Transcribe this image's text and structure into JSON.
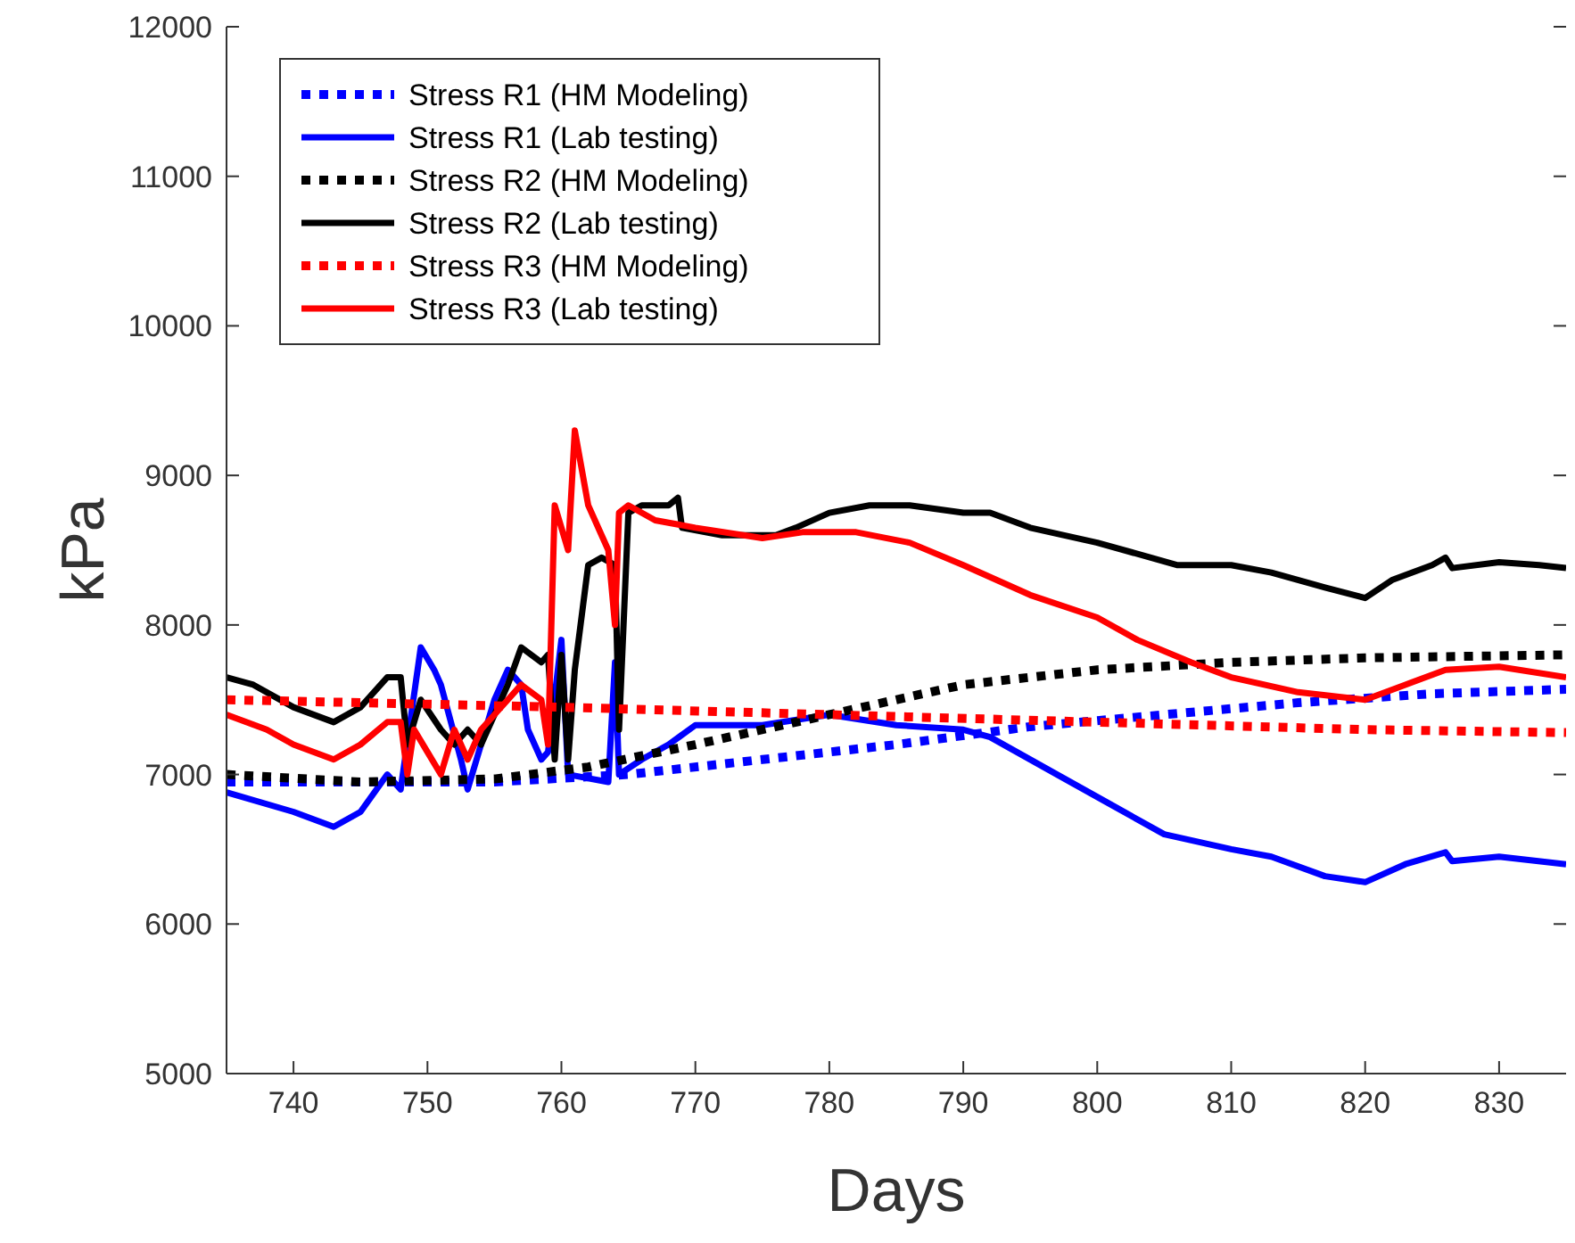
{
  "chart_data": {
    "type": "line",
    "xlabel": "Days",
    "ylabel": "kPa",
    "xlim": [
      735,
      835
    ],
    "ylim": [
      5000,
      12000
    ],
    "xticks": [
      740,
      750,
      760,
      770,
      780,
      790,
      800,
      810,
      820,
      830
    ],
    "yticks": [
      5000,
      6000,
      7000,
      8000,
      9000,
      10000,
      11000,
      12000
    ],
    "legend": "top left",
    "grid": false,
    "series": [
      {
        "name": "Stress R1 (HM Modeling)",
        "color": "#0000ff",
        "line_style": "dotted",
        "x": [
          735,
          745,
          755,
          765,
          775,
          785,
          795,
          805,
          815,
          825,
          835
        ],
        "values": [
          6950,
          6950,
          6950,
          7000,
          7100,
          7200,
          7320,
          7400,
          7480,
          7540,
          7570
        ]
      },
      {
        "name": "Stress R1 (Lab testing)",
        "color": "#0000ff",
        "line_style": "solid",
        "x": [
          735,
          740,
          743,
          745,
          747,
          748,
          749.5,
          750.5,
          751,
          752.5,
          753,
          754,
          755,
          756,
          757,
          757.5,
          758.5,
          759,
          760,
          760.5,
          763.5,
          764,
          764.3,
          766,
          768,
          770,
          775,
          780,
          785,
          790,
          792,
          797,
          801,
          805,
          810,
          813,
          817,
          820,
          823,
          826,
          826.5,
          830,
          835
        ],
        "values": [
          6880,
          6750,
          6650,
          6750,
          7000,
          6900,
          7850,
          7700,
          7600,
          7100,
          6900,
          7200,
          7500,
          7700,
          7600,
          7300,
          7100,
          7150,
          7900,
          7000,
          6950,
          7750,
          7000,
          7100,
          7200,
          7330,
          7330,
          7400,
          7330,
          7300,
          7250,
          7000,
          6800,
          6600,
          6500,
          6450,
          6320,
          6280,
          6400,
          6480,
          6420,
          6450,
          6400
        ]
      },
      {
        "name": "Stress R2 (HM Modeling)",
        "color": "#000000",
        "line_style": "dotted",
        "x": [
          735,
          745,
          755,
          762,
          770,
          780,
          790,
          800,
          810,
          820,
          835
        ],
        "values": [
          7000,
          6950,
          6970,
          7050,
          7200,
          7400,
          7600,
          7700,
          7750,
          7780,
          7800
        ]
      },
      {
        "name": "Stress R2 (Lab testing)",
        "color": "#000000",
        "line_style": "solid",
        "x": [
          735,
          737,
          740,
          743,
          745,
          747,
          748,
          748.5,
          749.5,
          751,
          752,
          753,
          754,
          755,
          756,
          757,
          758.5,
          759,
          759.5,
          760,
          760.5,
          761,
          762,
          763,
          764,
          764.3,
          765,
          766,
          768,
          768.7,
          769,
          772,
          776,
          777.5,
          780,
          783,
          786,
          790,
          792,
          795,
          800,
          804,
          806,
          810,
          813,
          817,
          820,
          822,
          825,
          826,
          826.5,
          830,
          833,
          835
        ],
        "values": [
          7650,
          7600,
          7450,
          7350,
          7450,
          7650,
          7650,
          7200,
          7500,
          7300,
          7200,
          7300,
          7200,
          7400,
          7600,
          7850,
          7750,
          7800,
          7100,
          7800,
          7100,
          7700,
          8400,
          8450,
          8400,
          7300,
          8750,
          8800,
          8800,
          8850,
          8650,
          8600,
          8600,
          8650,
          8750,
          8800,
          8800,
          8750,
          8750,
          8650,
          8550,
          8450,
          8400,
          8400,
          8350,
          8250,
          8180,
          8300,
          8400,
          8450,
          8380,
          8420,
          8400,
          8380
        ]
      },
      {
        "name": "Stress R3 (HM Modeling)",
        "color": "#ff0000",
        "line_style": "dotted",
        "x": [
          735,
          760,
          780,
          800,
          820,
          835
        ],
        "values": [
          7500,
          7450,
          7400,
          7350,
          7300,
          7280
        ]
      },
      {
        "name": "Stress R3 (Lab testing)",
        "color": "#ff0000",
        "line_style": "solid",
        "x": [
          735,
          738,
          740,
          743,
          745,
          747,
          748,
          748.5,
          749,
          750,
          751,
          752,
          753,
          754,
          755,
          756,
          757,
          758.5,
          759,
          759.5,
          760.5,
          761,
          762,
          763,
          763.5,
          764,
          764.3,
          765,
          767,
          770,
          775,
          778,
          782,
          786,
          790,
          795,
          800,
          803,
          807,
          810,
          815,
          820,
          823,
          826,
          830,
          835
        ],
        "values": [
          7400,
          7300,
          7200,
          7100,
          7200,
          7350,
          7350,
          7000,
          7300,
          7150,
          7000,
          7300,
          7100,
          7300,
          7400,
          7500,
          7600,
          7500,
          7200,
          8800,
          8500,
          9300,
          8800,
          8600,
          8500,
          8000,
          8750,
          8800,
          8700,
          8650,
          8580,
          8620,
          8620,
          8550,
          8400,
          8200,
          8050,
          7900,
          7750,
          7650,
          7550,
          7500,
          7600,
          7700,
          7720,
          7650
        ]
      }
    ]
  }
}
